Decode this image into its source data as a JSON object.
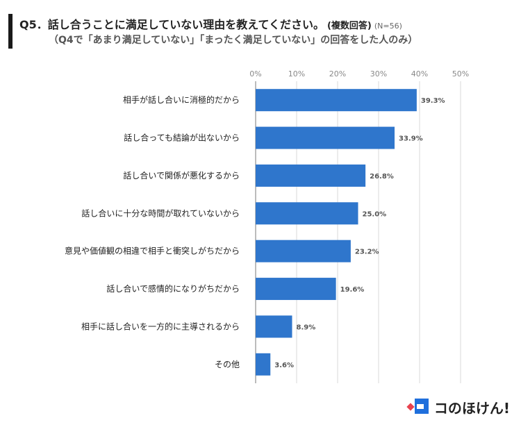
{
  "title": {
    "main": "Q5．話し合うことに満足していない理由を教えてください。",
    "suffix": "(複数回答)",
    "n": "(N=56)",
    "subtitle": "（Q4で「あまり満足していない」「まったく満足していない」の回答をした人のみ）"
  },
  "logo": {
    "text": "コのほけん!"
  },
  "colors": {
    "bar": "#2f76cc",
    "grid": "#d9d9d9",
    "axis": "#777777"
  },
  "chart_data": {
    "type": "bar",
    "orientation": "horizontal",
    "categories": [
      "相手が話し合いに消極的だから",
      "話し合っても結論が出ないから",
      "話し合いで関係が悪化するから",
      "話し合いに十分な時間が取れていないから",
      "意見や価値観の相違で相手と衝突しがちだから",
      "話し合いで感情的になりがちだから",
      "相手に話し合いを一方的に主導されるから",
      "その他"
    ],
    "values": [
      39.3,
      33.9,
      26.8,
      25.0,
      23.2,
      19.6,
      8.9,
      3.6
    ],
    "value_labels": [
      "39.3%",
      "33.9%",
      "26.8%",
      "25.0%",
      "23.2%",
      "19.6%",
      "8.9%",
      "3.6%"
    ],
    "xlim": [
      0,
      50
    ],
    "ticks": [
      0,
      10,
      20,
      30,
      40,
      50
    ],
    "tick_labels": [
      "0%",
      "10%",
      "20%",
      "30%",
      "40%",
      "50%"
    ],
    "grid": true,
    "xlabel": "",
    "ylabel": ""
  }
}
